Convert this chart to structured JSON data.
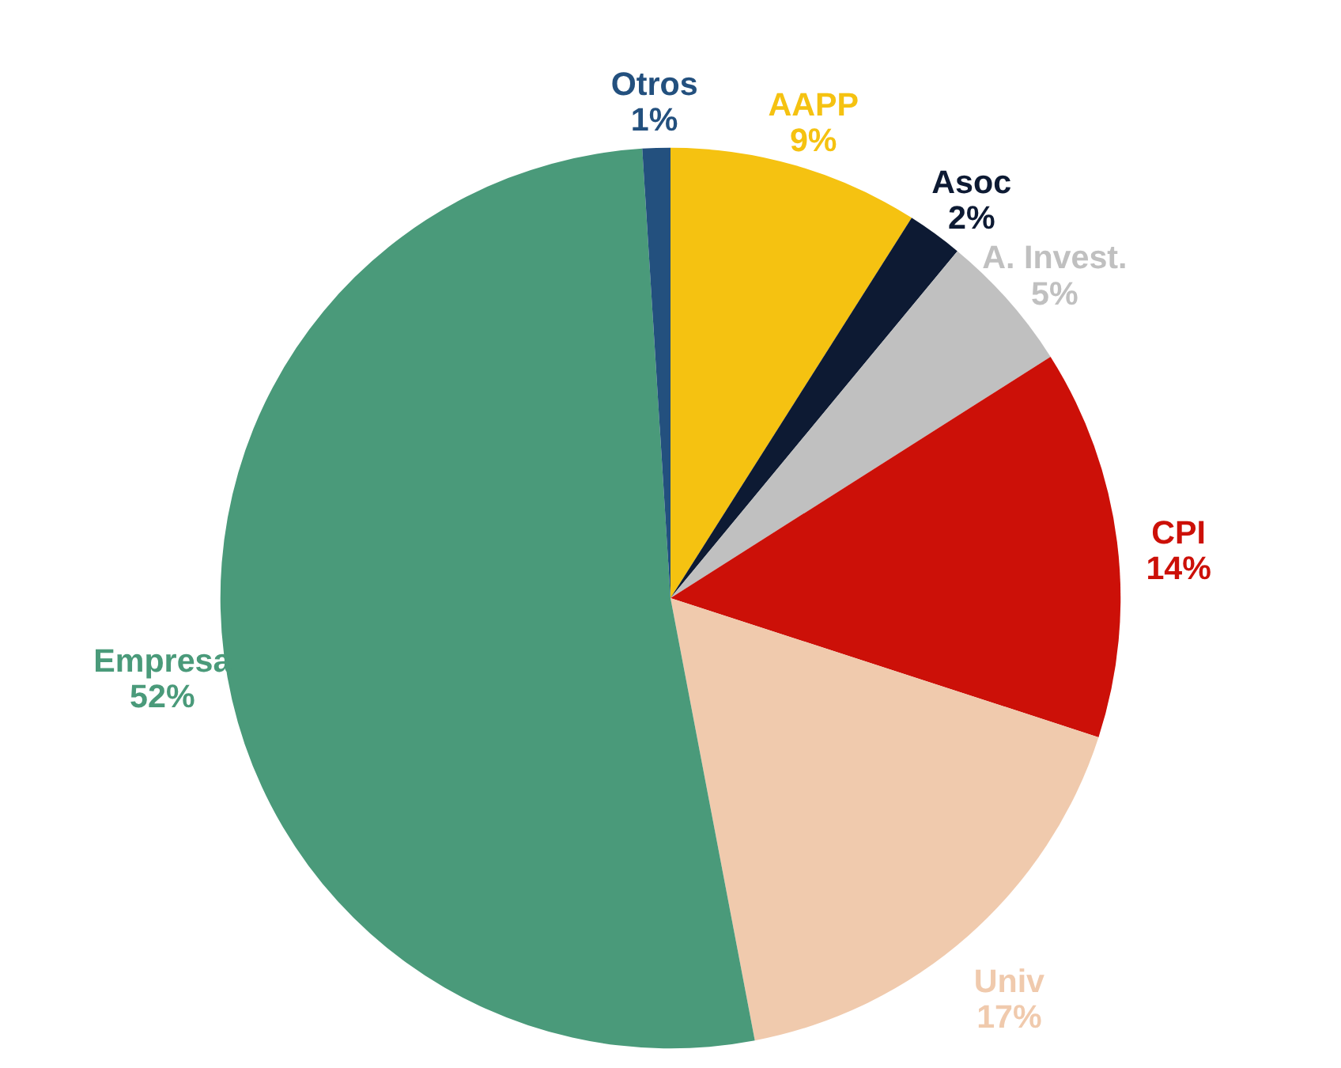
{
  "chart_data": {
    "type": "pie",
    "categories": [
      "AAPP",
      "Asoc",
      "A. Invest.",
      "CPI",
      "Univ",
      "Empresa",
      "Otros"
    ],
    "values": [
      9,
      2,
      5,
      14,
      17,
      52,
      1
    ],
    "colors": [
      "#f5c211",
      "#0d1a33",
      "#c0c0c0",
      "#cc1008",
      "#f0caad",
      "#4a9a7a",
      "#23507e"
    ],
    "value_labels": [
      "9%",
      "2%",
      "5%",
      "14%",
      "17%",
      "52%",
      "1%"
    ]
  }
}
